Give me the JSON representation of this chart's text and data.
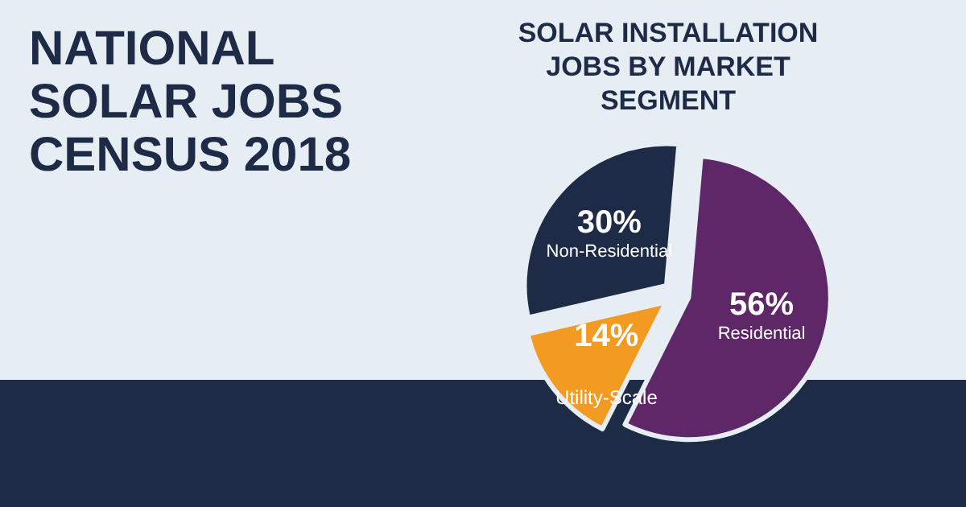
{
  "chart_data": {
    "type": "pie",
    "title": "SOLAR INSTALLATION JOBS BY MARKET SEGMENT",
    "annotations": [
      "NATIONAL SOLAR JOBS CENSUS 2018"
    ],
    "categories": [
      "Residential",
      "Utility-Scale",
      "Non-Residential"
    ],
    "values": [
      56,
      14,
      30
    ],
    "colors": [
      "#5e2767",
      "#f29a22",
      "#1e2b47"
    ],
    "value_labels": [
      "56%",
      "14%",
      "30%"
    ]
  }
}
